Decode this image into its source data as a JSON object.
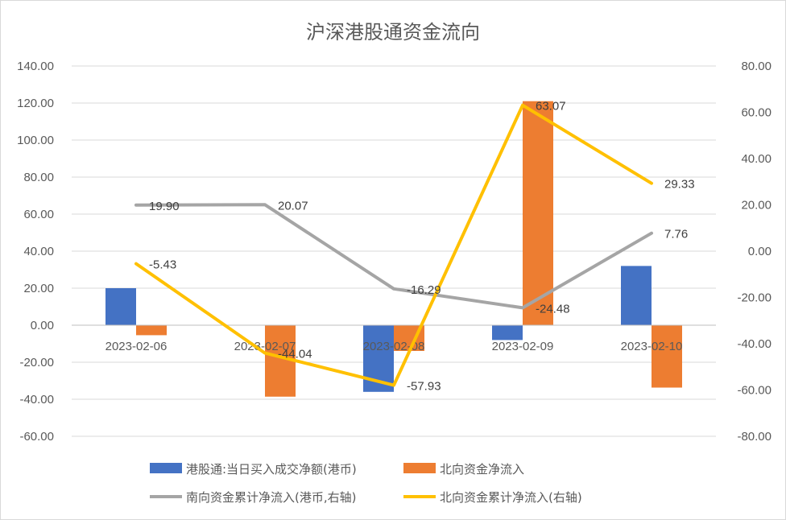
{
  "chart_data": {
    "type": "bar",
    "title": "沪深港股通资金流向",
    "categories": [
      "2023-02-06",
      "2023-02-07",
      "2023-02-08",
      "2023-02-09",
      "2023-02-10"
    ],
    "left_axis": {
      "min": -60,
      "max": 140,
      "step": 20,
      "ticks": [
        "140.00",
        "120.00",
        "100.00",
        "80.00",
        "60.00",
        "40.00",
        "20.00",
        "0.00",
        "-20.00",
        "-40.00",
        "-60.00"
      ]
    },
    "right_axis": {
      "min": -80,
      "max": 80,
      "step": 20,
      "ticks": [
        "80.00",
        "60.00",
        "40.00",
        "20.00",
        "0.00",
        "-20.00",
        "-40.00",
        "-60.00",
        "-80.00"
      ]
    },
    "series": [
      {
        "name": "港股通:当日买入成交净额(港币)",
        "kind": "bar",
        "axis": "left",
        "color": "#4472C4",
        "values": [
          20.0,
          0.0,
          -36.0,
          -8.0,
          32.0
        ]
      },
      {
        "name": "北向资金净流入",
        "kind": "bar",
        "axis": "left",
        "color": "#ED7D31",
        "values": [
          -5.4,
          -38.6,
          -13.9,
          121.0,
          -33.7
        ]
      },
      {
        "name": "南向资金累计净流入(港币,右轴)",
        "kind": "line",
        "axis": "right",
        "color": "#A5A5A5",
        "values": [
          19.9,
          20.07,
          -16.29,
          -24.48,
          7.76
        ],
        "labels": [
          "19.90",
          "20.07",
          "-16.29",
          "-24.48",
          "7.76"
        ]
      },
      {
        "name": "北向资金累计净流入(右轴)",
        "kind": "line",
        "axis": "right",
        "color": "#FFC000",
        "values": [
          -5.43,
          -44.04,
          -57.93,
          63.07,
          29.33
        ],
        "labels": [
          "-5.43",
          "-44.04",
          "-57.93",
          "63.07",
          "29.33"
        ]
      }
    ],
    "grid": true,
    "legend_position": "bottom"
  }
}
